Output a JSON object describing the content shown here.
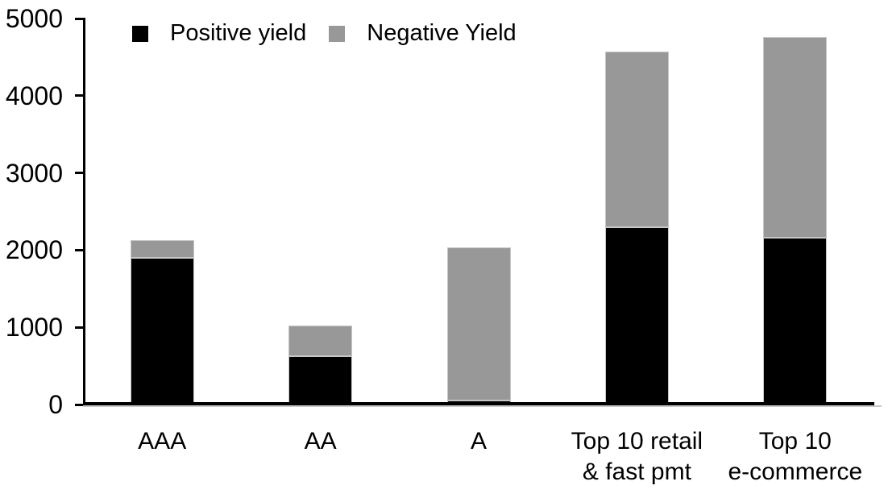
{
  "chart_data": {
    "type": "bar",
    "stacked": true,
    "title": "",
    "xlabel": "",
    "ylabel": "",
    "categories": [
      "AAA",
      "AA",
      "A",
      "Top 10 retail & fast pmt",
      "Top 10 e-commerce"
    ],
    "category_labels": [
      [
        "AAA"
      ],
      [
        "AA"
      ],
      [
        "A"
      ],
      [
        "Top 10 retail",
        "& fast pmt"
      ],
      [
        "Top 10",
        "e-commerce"
      ]
    ],
    "series": [
      {
        "name": "Positive yield",
        "color": "#000000",
        "values": [
          1890,
          620,
          45,
          2290,
          2150
        ]
      },
      {
        "name": "Negative Yield",
        "color": "#989898",
        "values": [
          230,
          390,
          1985,
          2270,
          2600
        ]
      }
    ],
    "totals": [
      2120,
      1010,
      2030,
      4560,
      4750
    ],
    "ylim": [
      0,
      5000
    ],
    "yticks": [
      0,
      1000,
      2000,
      3000,
      4000,
      5000
    ],
    "ytick_labels": [
      "0",
      "1000",
      "2000",
      "3000",
      "4000",
      "5000"
    ],
    "grid": false,
    "legend_position": "top",
    "axis_color": "#000000",
    "axis_shadow_color": "#c9c9c9",
    "bar_edge_color": "#c6c6c6",
    "background_color": "#ffffff"
  }
}
